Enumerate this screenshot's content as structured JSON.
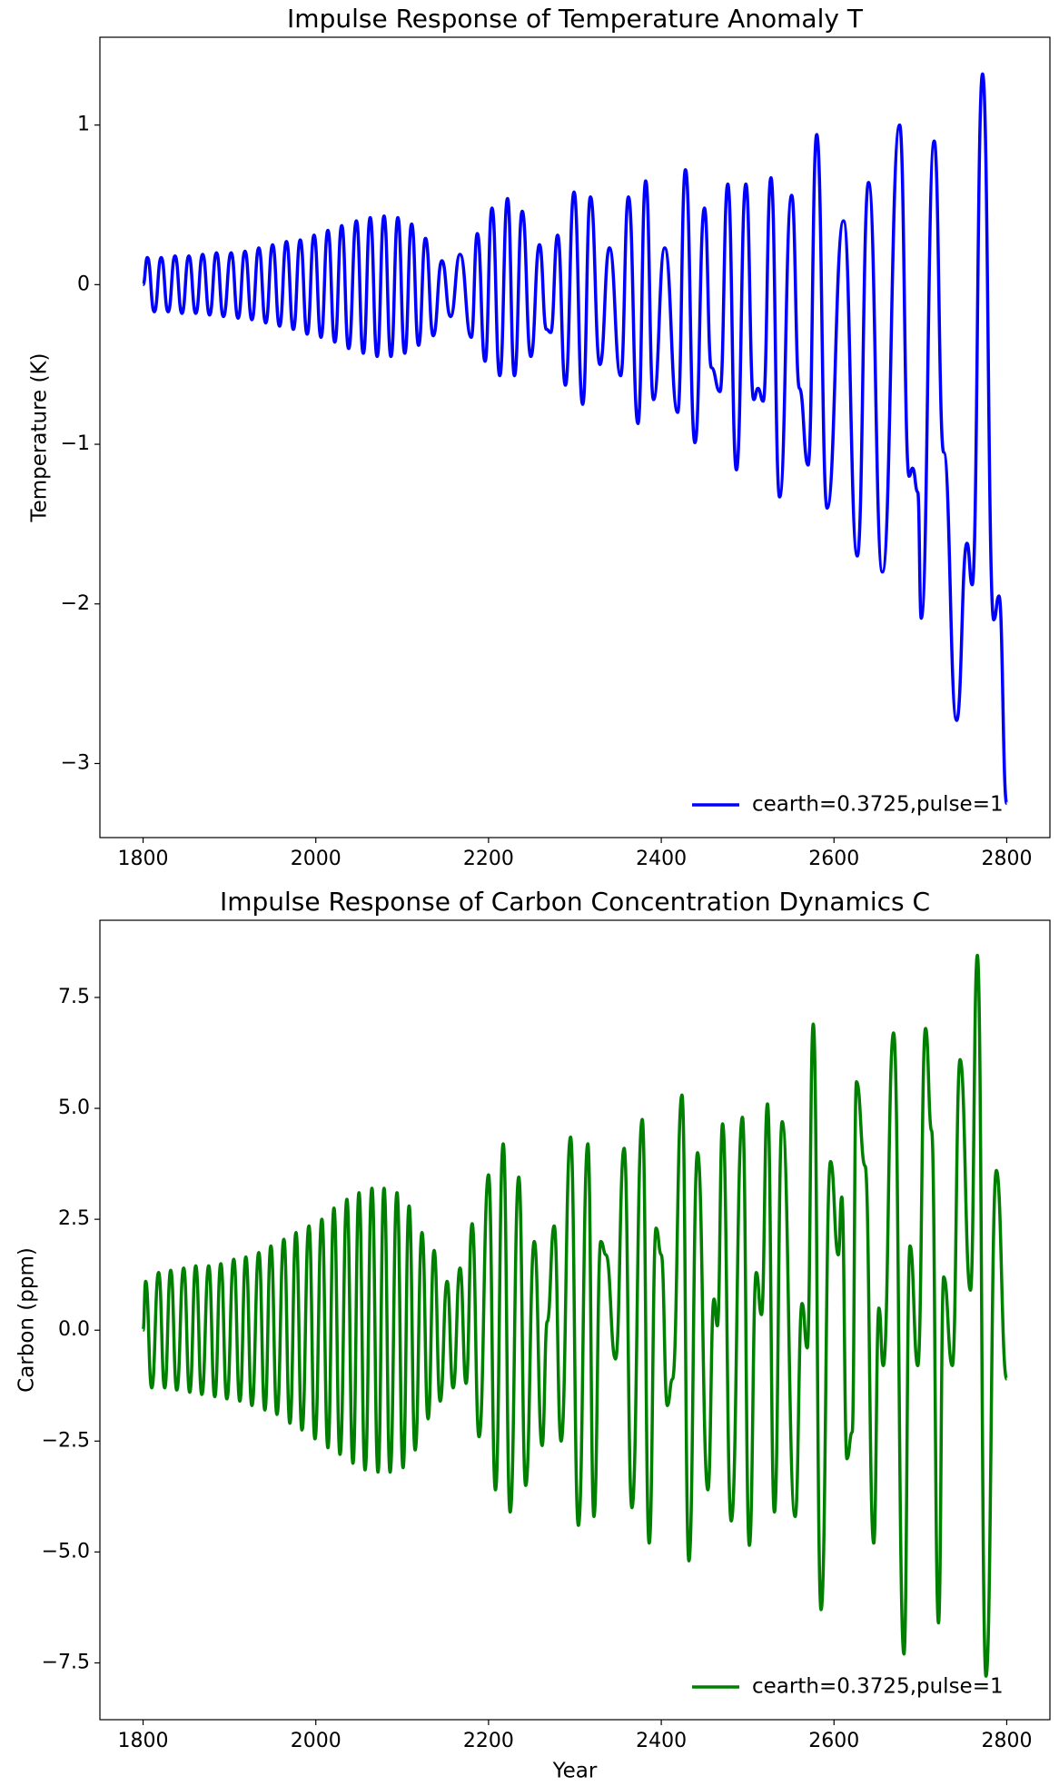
{
  "chart_data": [
    {
      "type": "line",
      "title": "Impulse Response of Temperature Anomaly T",
      "ylabel": "Temperature (K)",
      "x": [
        1800,
        1805,
        1813,
        1821,
        1829,
        1837,
        1845,
        1853,
        1861,
        1869,
        1877,
        1885,
        1893,
        1902,
        1910,
        1918,
        1926,
        1934,
        1942,
        1950,
        1958,
        1966,
        1974,
        1982,
        1990,
        1998,
        2006,
        2014,
        2022,
        2030,
        2038,
        2047,
        2055,
        2063,
        2071,
        2079,
        2087,
        2095,
        2103,
        2111,
        2119,
        2127,
        2136,
        2146,
        2156,
        2167,
        2180,
        2187,
        2196,
        2204,
        2213,
        2222,
        2230,
        2239,
        2249,
        2259,
        2267,
        2272,
        2280,
        2289,
        2299,
        2309,
        2318,
        2329,
        2340,
        2353,
        2362,
        2373,
        2382,
        2391,
        2404,
        2419,
        2428,
        2439,
        2450,
        2458,
        2468,
        2477,
        2487,
        2498,
        2507,
        2512,
        2518,
        2527,
        2537,
        2551,
        2560,
        2570,
        2580,
        2592,
        2611,
        2627,
        2640,
        2656,
        2676,
        2687,
        2691,
        2697,
        2701,
        2716,
        2727,
        2742,
        2754,
        2760,
        2772,
        2785,
        2791,
        2800
      ],
      "series": [
        {
          "name": "cearth=0.3725,pulse=1",
          "color": "#0000ff",
          "values": [
            0,
            0.17,
            -0.17,
            0.17,
            -0.17,
            0.18,
            -0.18,
            0.18,
            -0.18,
            0.19,
            -0.19,
            0.2,
            -0.2,
            0.2,
            -0.21,
            0.21,
            -0.22,
            0.23,
            -0.24,
            0.25,
            -0.26,
            0.27,
            -0.28,
            0.28,
            -0.31,
            0.31,
            -0.33,
            0.34,
            -0.36,
            0.37,
            -0.4,
            0.4,
            -0.43,
            0.42,
            -0.45,
            0.43,
            -0.45,
            0.42,
            -0.43,
            0.38,
            -0.38,
            0.29,
            -0.32,
            0.15,
            -0.2,
            0.19,
            -0.33,
            0.32,
            -0.48,
            0.48,
            -0.57,
            0.54,
            -0.57,
            0.46,
            -0.45,
            0.25,
            -0.28,
            -0.3,
            0.31,
            -0.63,
            0.58,
            -0.75,
            0.55,
            -0.5,
            0.23,
            -0.57,
            0.55,
            -0.87,
            0.65,
            -0.72,
            0.23,
            -0.8,
            0.72,
            -0.99,
            0.48,
            -0.52,
            -0.67,
            0.63,
            -1.16,
            0.63,
            -0.72,
            -0.65,
            -0.73,
            0.67,
            -1.33,
            0.56,
            -0.65,
            -1.13,
            0.94,
            -1.4,
            0.4,
            -1.7,
            0.64,
            -1.8,
            1.0,
            -1.2,
            -1.15,
            -1.3,
            -2.09,
            0.9,
            -1.05,
            -2.73,
            -1.62,
            -1.88,
            1.32,
            -2.1,
            -1.95,
            -3.25
          ]
        }
      ],
      "xlim": [
        1750,
        2850
      ],
      "ylim": [
        -3.464,
        1.55
      ],
      "xticks": [
        1800,
        2000,
        2200,
        2400,
        2600,
        2800
      ],
      "yticks": [
        {
          "value": -3,
          "label": "−3"
        },
        {
          "value": -2,
          "label": "−2"
        },
        {
          "value": -1,
          "label": "−1"
        },
        0,
        1
      ],
      "legend": "lower right"
    },
    {
      "type": "line",
      "title": "Impulse Response of Carbon Concentration Dynamics C",
      "xlabel": "Year",
      "ylabel": "Carbon (ppm)",
      "x": [
        1800,
        1803,
        1810,
        1818,
        1825,
        1832,
        1839,
        1847,
        1854,
        1861,
        1868,
        1876,
        1883,
        1890,
        1897,
        1905,
        1912,
        1919,
        1926,
        1934,
        1941,
        1948,
        1955,
        1963,
        1970,
        1977,
        1984,
        1992,
        1999,
        2007,
        2014,
        2021,
        2028,
        2036,
        2043,
        2050,
        2057,
        2065,
        2072,
        2079,
        2086,
        2094,
        2101,
        2108,
        2115,
        2123,
        2130,
        2137,
        2144,
        2152,
        2159,
        2167,
        2174,
        2181,
        2189,
        2200,
        2208,
        2217,
        2225,
        2235,
        2243,
        2253,
        2262,
        2268,
        2276,
        2284,
        2295,
        2304,
        2315,
        2322,
        2330,
        2336,
        2347,
        2357,
        2366,
        2378,
        2386,
        2394,
        2400,
        2407,
        2413,
        2424,
        2432,
        2442,
        2454,
        2461,
        2465,
        2471,
        2481,
        2494,
        2502,
        2510,
        2516,
        2523,
        2531,
        2540,
        2555,
        2563,
        2569,
        2576,
        2585,
        2596,
        2605,
        2609,
        2615,
        2621,
        2626,
        2636,
        2646,
        2652,
        2657,
        2669,
        2681,
        2688,
        2697,
        2706,
        2713,
        2721,
        2727,
        2737,
        2746,
        2758,
        2766,
        2776,
        2788,
        2800
      ],
      "series": [
        {
          "name": "cearth=0.3725,pulse=1",
          "color": "#008000",
          "values": [
            0,
            1.1,
            -1.3,
            1.3,
            -1.3,
            1.35,
            -1.35,
            1.4,
            -1.4,
            1.45,
            -1.45,
            1.45,
            -1.5,
            1.5,
            -1.55,
            1.6,
            -1.6,
            1.65,
            -1.7,
            1.75,
            -1.8,
            1.9,
            -1.9,
            2.05,
            -2.1,
            2.2,
            -2.25,
            2.35,
            -2.45,
            2.5,
            -2.65,
            2.75,
            -2.8,
            2.95,
            -3.0,
            3.1,
            -3.15,
            3.2,
            -3.2,
            3.2,
            -3.2,
            3.1,
            -3.1,
            2.8,
            -2.7,
            2.2,
            -2.0,
            1.8,
            -1.6,
            1.1,
            -1.3,
            1.4,
            -1.2,
            2.4,
            -2.4,
            3.5,
            -3.6,
            4.2,
            -4.1,
            3.45,
            -3.5,
            2.0,
            -2.6,
            0.2,
            2.35,
            -2.5,
            4.35,
            -4.4,
            4.2,
            -4.2,
            2.0,
            1.7,
            -0.65,
            4.1,
            -4.0,
            4.75,
            -4.8,
            2.3,
            1.7,
            -1.7,
            -1.1,
            5.3,
            -5.2,
            4.0,
            -3.6,
            0.7,
            0.1,
            4.65,
            -4.3,
            4.8,
            -4.85,
            1.3,
            0.35,
            5.1,
            -4.1,
            4.7,
            -4.2,
            0.6,
            -0.4,
            6.9,
            -6.3,
            3.8,
            1.7,
            3.0,
            -2.9,
            -2.3,
            5.6,
            3.7,
            -4.8,
            0.5,
            -0.8,
            6.7,
            -7.3,
            1.9,
            -0.8,
            6.8,
            4.5,
            -6.6,
            1.2,
            -0.8,
            6.1,
            0.9,
            8.45,
            -7.8,
            3.6,
            -1.1
          ]
        }
      ],
      "xlim": [
        1750,
        2850
      ],
      "ylim": [
        -8.78,
        9.24
      ],
      "xticks": [
        1800,
        2000,
        2200,
        2400,
        2600,
        2800
      ],
      "yticks": [
        {
          "value": -7.5,
          "label": "−7.5"
        },
        {
          "value": -5,
          "label": "−5.0"
        },
        {
          "value": -2.5,
          "label": "−2.5"
        },
        {
          "value": 0,
          "label": "0.0"
        },
        2.5,
        {
          "value": 5,
          "label": "5.0"
        },
        7.5
      ],
      "legend": "lower right"
    }
  ]
}
